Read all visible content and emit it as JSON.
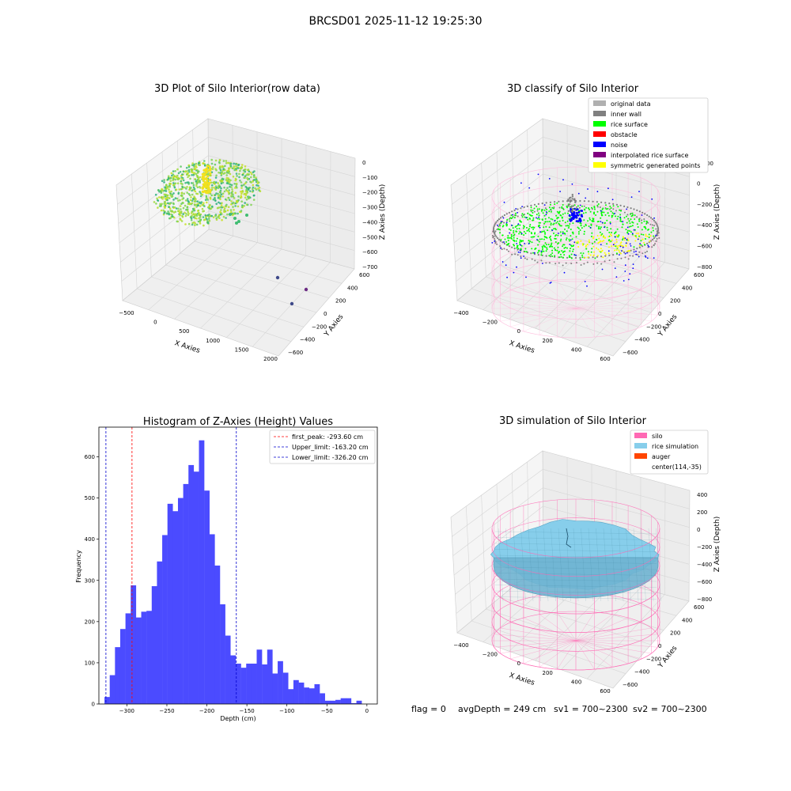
{
  "figure": {
    "suptitle": "BRCSD01 2025-11-12 19:25:30",
    "footer": {
      "flag": "flag = 0",
      "avg": "avgDepth = 249 cm",
      "sv1": "sv1 = 700~2300",
      "sv2": "sv2 = 700~2300"
    }
  },
  "colors": {
    "hist_bar": "#4b4bff",
    "first_peak_line": "#ff0000",
    "limit_line": "#0000cc",
    "silo": "#ff69b4",
    "rice_simulation": "#87ceeb",
    "auger": "#ff4500",
    "pane": "#f2f2f2",
    "rice_surface": "#00ff00",
    "noise": "#0000ff",
    "obstacle": "#ff0000",
    "inner_wall": "#808080",
    "original": "#b0b0b0",
    "interpolated": "#800080",
    "symmetric": "#ffff00"
  },
  "chart_data": [
    {
      "type": "scatter",
      "title": "3D Plot of Silo Interior(row data)",
      "xlabel": "X Axies",
      "ylabel": "Y Axies",
      "zlabel": "Z Axies (Depth)",
      "x_ticks": [
        "−500",
        "0",
        "500",
        "1000",
        "1500",
        "2000"
      ],
      "y_ticks": [
        "−600",
        "−400",
        "−200",
        "0",
        "200",
        "400",
        "600"
      ],
      "z_ticks": [
        "0",
        "−100",
        "−200",
        "−300",
        "−400",
        "−500",
        "−600",
        "−700"
      ],
      "outliers": [
        {
          "x": 1400,
          "y": 0,
          "z": -700
        },
        {
          "x": 1550,
          "y": 300,
          "z": -700
        },
        {
          "x": 1600,
          "y": -200,
          "z": -700
        }
      ]
    },
    {
      "type": "scatter",
      "title": "3D classify of Silo Interior",
      "xlabel": "X Axies",
      "ylabel": "Y Axies",
      "zlabel": "Z Axies (Depth)",
      "x_ticks": [
        "−400",
        "−200",
        "0",
        "200",
        "400",
        "600"
      ],
      "y_ticks": [
        "−600",
        "−400",
        "−200",
        "0",
        "200",
        "400",
        "600"
      ],
      "z_ticks": [
        "200",
        "0",
        "−200",
        "−400",
        "−600",
        "−800"
      ],
      "legend": [
        "original data",
        "inner wall",
        "rice surface",
        "obstacle",
        "noise",
        "interpolated rice surface",
        "symmetric generated points"
      ],
      "legend_colors": [
        "#b0b0b0",
        "#808080",
        "#00ff00",
        "#ff0000",
        "#0000ff",
        "#800080",
        "#ffff00"
      ],
      "legend_position": "upper right",
      "z_partial_tick": "00"
    },
    {
      "type": "bar",
      "title": "Histogram of Z-Axies (Height) Values",
      "xlabel": "Depth (cm)",
      "ylabel": "Frequency",
      "xlim": [
        -335,
        13
      ],
      "ylim": [
        0,
        672
      ],
      "bin_start": -328,
      "bin_width": 6.56,
      "values": [
        17,
        70,
        138,
        182,
        220,
        288,
        210,
        224,
        226,
        286,
        346,
        410,
        486,
        468,
        500,
        534,
        580,
        564,
        640,
        518,
        412,
        336,
        242,
        166,
        118,
        98,
        88,
        98,
        98,
        132,
        96,
        132,
        74,
        104,
        76,
        36,
        58,
        52,
        40,
        38,
        48,
        26,
        8,
        8,
        10,
        14,
        14,
        2,
        8
      ],
      "x_ticks": [
        -300,
        -250,
        -200,
        -150,
        -100,
        -50,
        0
      ],
      "x_tick_labels": [
        "−300",
        "−250",
        "−200",
        "−150",
        "−100",
        "−50",
        "0"
      ],
      "y_ticks": [
        0,
        100,
        200,
        300,
        400,
        500,
        600
      ],
      "y_tick_labels": [
        "0",
        "100",
        "200",
        "300",
        "400",
        "500",
        "600"
      ],
      "vlines": [
        {
          "name": "first_peak: -293.60 cm",
          "x": -293.6,
          "color": "#ff0000"
        },
        {
          "name": "Upper_limit: -163.20 cm",
          "x": -163.2,
          "color": "#0000cc"
        },
        {
          "name": "Lower_limit: -326.20 cm",
          "x": -326.2,
          "color": "#0000cc"
        }
      ],
      "legend_position": "upper right"
    },
    {
      "type": "scatter",
      "title": "3D simulation of Silo Interior",
      "xlabel": "X Axies",
      "ylabel": "Y Axies",
      "zlabel": "Z Axies (Depth)",
      "x_ticks": [
        "−400",
        "−200",
        "0",
        "200",
        "400",
        "600"
      ],
      "y_ticks": [
        "−600",
        "−400",
        "−200",
        "0",
        "200",
        "400",
        "600"
      ],
      "z_ticks": [
        "400",
        "200",
        "0",
        "−200",
        "−400",
        "−600",
        "−800"
      ],
      "legend": [
        "silo",
        "rice simulation",
        "auger",
        "center(114,-35)"
      ],
      "legend_colors": [
        "#ff69b4",
        "#87ceeb",
        "#ff4500",
        ""
      ],
      "legend_position": "upper right"
    }
  ]
}
